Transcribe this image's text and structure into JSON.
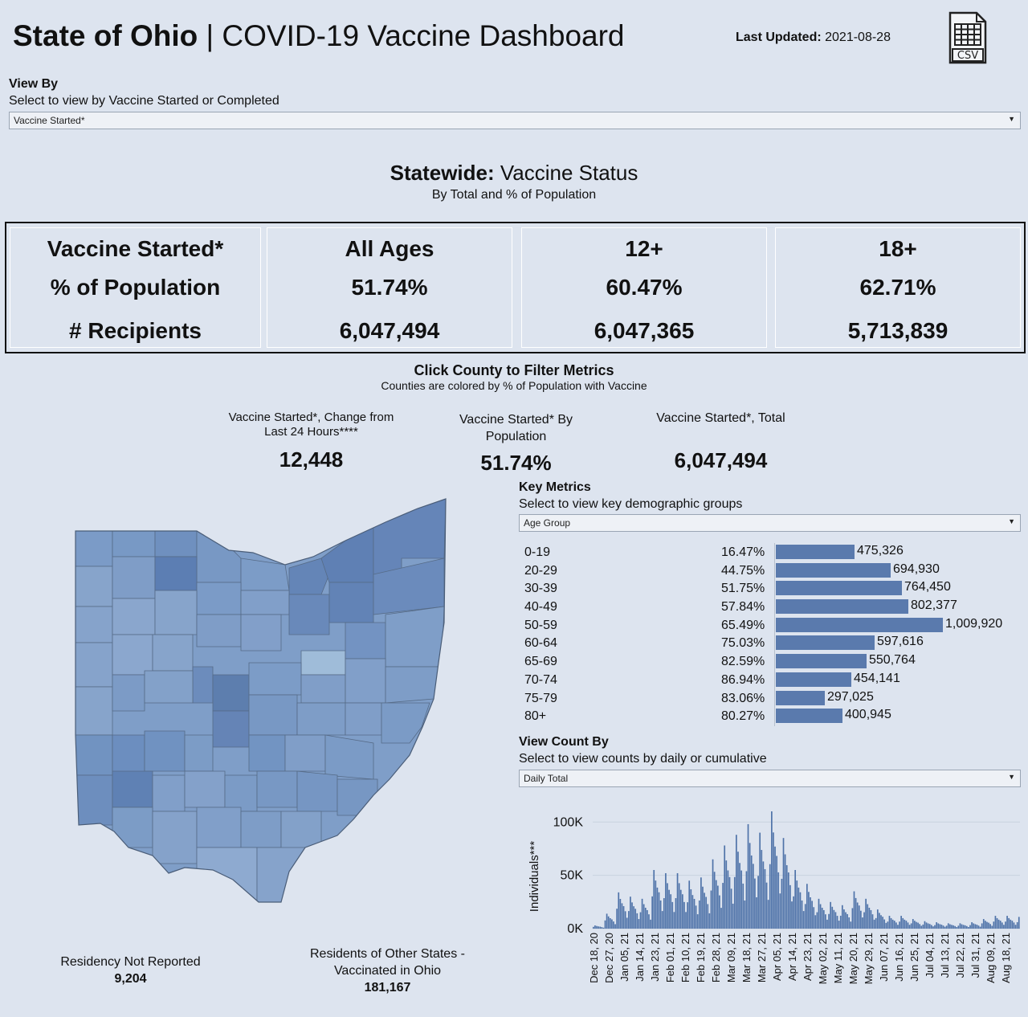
{
  "header": {
    "title_bold": "State of Ohio",
    "title_sep": " | ",
    "title_rest": "COVID-19 Vaccine Dashboard",
    "last_updated_label": "Last Updated:",
    "last_updated_value": " 2021-08-28",
    "csv_label": "CSV"
  },
  "view_by": {
    "label": "View By",
    "sub": "Select to view by Vaccine Started or Completed",
    "selected": "Vaccine Started*"
  },
  "statewide": {
    "title_bold": "Statewide:",
    "title_rest": " Vaccine Status",
    "sub": "By Total and % of Population",
    "columns": [
      {
        "header": "Vaccine Started*",
        "pct": "% of Population",
        "recipients": "# Recipients"
      },
      {
        "header": "All Ages",
        "pct": "51.74%",
        "recipients": "6,047,494"
      },
      {
        "header": "12+",
        "pct": "60.47%",
        "recipients": "6,047,365"
      },
      {
        "header": "18+",
        "pct": "62.71%",
        "recipients": "5,713,839"
      }
    ]
  },
  "county_filter": {
    "title": "Click County to Filter Metrics",
    "sub": "Counties are colored by % of Population with Vaccine"
  },
  "kpis": {
    "change_label": "Vaccine Started*, Change from Last 24 Hours****",
    "change_value": "12,448",
    "pop_label": "Vaccine Started* By Population",
    "pop_value": "51.74%",
    "total_label": "Vaccine Started*, Total",
    "total_value": "6,047,494"
  },
  "footer": {
    "residency_label": "Residency Not Reported",
    "residency_value": "9,204",
    "other_label": "Residents of Other States - Vaccinated in Ohio",
    "other_value": "181,167"
  },
  "key_metrics": {
    "label": "Key Metrics",
    "sub": "Select to view key demographic groups",
    "selected": "Age Group",
    "rows": [
      {
        "group": "0-19",
        "pct": "16.47%",
        "count": "475,326",
        "value": 475326
      },
      {
        "group": "20-29",
        "pct": "44.75%",
        "count": "694,930",
        "value": 694930
      },
      {
        "group": "30-39",
        "pct": "51.75%",
        "count": "764,450",
        "value": 764450
      },
      {
        "group": "40-49",
        "pct": "57.84%",
        "count": "802,377",
        "value": 802377
      },
      {
        "group": "50-59",
        "pct": "65.49%",
        "count": "1,009,920",
        "value": 1009920
      },
      {
        "group": "60-64",
        "pct": "75.03%",
        "count": "597,616",
        "value": 597616
      },
      {
        "group": "65-69",
        "pct": "82.59%",
        "count": "550,764",
        "value": 550764
      },
      {
        "group": "70-74",
        "pct": "86.94%",
        "count": "454,141",
        "value": 454141
      },
      {
        "group": "75-79",
        "pct": "83.06%",
        "count": "297,025",
        "value": 297025
      },
      {
        "group": "80+",
        "pct": "80.27%",
        "count": "400,945",
        "value": 400945
      }
    ]
  },
  "view_count": {
    "label": "View Count By",
    "sub": "Select to view counts by daily or cumulative",
    "selected": "Daily Total"
  },
  "chart_data": {
    "type": "bar",
    "title": "",
    "xlabel": "",
    "ylabel": "Individuals***",
    "ylim": [
      0,
      110000
    ],
    "y_ticks": [
      0,
      50000,
      100000
    ],
    "y_tick_labels": [
      "0K",
      "50K",
      "100K"
    ],
    "x_tick_labels": [
      "Dec 18, 20",
      "Dec 27, 20",
      "Jan 05, 21",
      "Jan 14, 21",
      "Jan 23, 21",
      "Feb 01, 21",
      "Feb 10, 21",
      "Feb 19, 21",
      "Feb 28, 21",
      "Mar 09, 21",
      "Mar 18, 21",
      "Mar 27, 21",
      "Apr 05, 21",
      "Apr 14, 21",
      "Apr 23, 21",
      "May 02, 21",
      "May 11, 21",
      "May 20, 21",
      "May 29, 21",
      "Jun 07, 21",
      "Jun 16, 21",
      "Jun 25, 21",
      "Jul 04, 21",
      "Jul 13, 21",
      "Jul 22, 21",
      "Jul 31, 21",
      "Aug 09, 21",
      "Aug 18, 21"
    ],
    "series": [
      {
        "name": "Daily Total",
        "weekly_peaks": [
          3000,
          14000,
          34000,
          30000,
          28000,
          55000,
          52000,
          52000,
          45000,
          48000,
          65000,
          78000,
          88000,
          98000,
          90000,
          110000,
          85000,
          55000,
          42000,
          28000,
          25000,
          22000,
          35000,
          28000,
          18000,
          12000,
          12000,
          9000,
          7000,
          6000,
          5000,
          5000,
          6000,
          9000,
          12000,
          12000,
          11000,
          12000,
          10000
        ]
      }
    ]
  }
}
